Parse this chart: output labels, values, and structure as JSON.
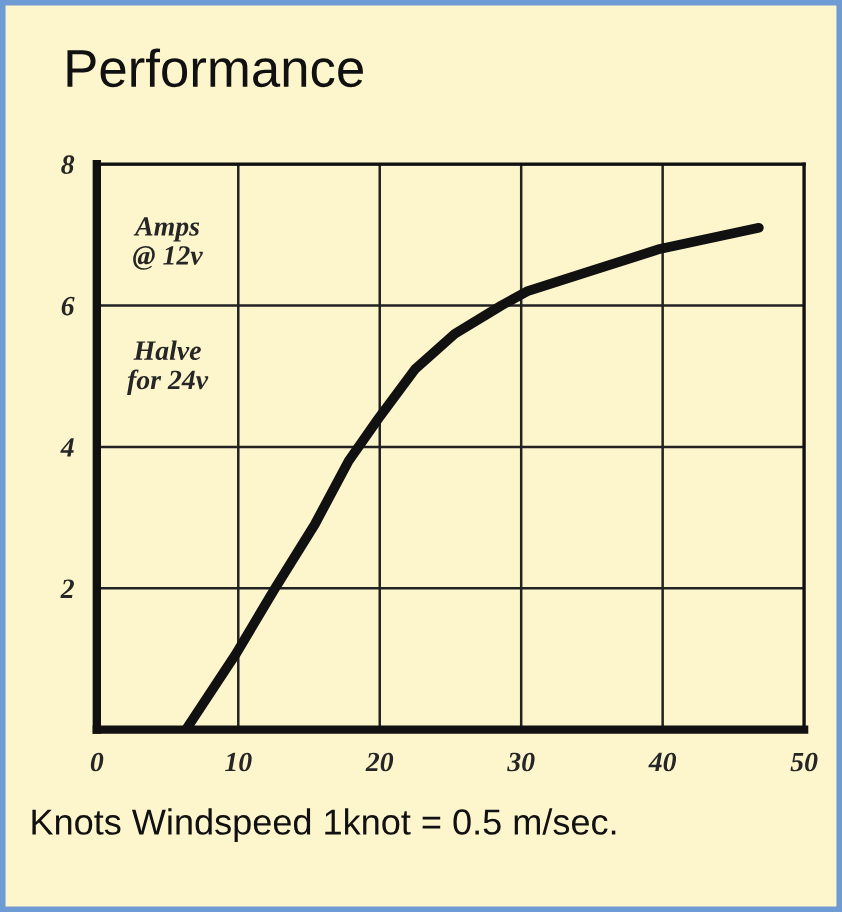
{
  "chart_data": {
    "type": "line",
    "title": "Performance",
    "xlabel": "Knots Windspeed 1knot = 0.5 m/sec.",
    "annotations": [
      "Amps\n@ 12v",
      "Halve\nfor 24v"
    ],
    "x": [
      6.3,
      9.8,
      12.6,
      15.4,
      17.8,
      19.9,
      22.5,
      25.3,
      28.6,
      30.4,
      35.1,
      39.8,
      46.8
    ],
    "series": [
      {
        "color": "#111111",
        "values": [
          0,
          1.06,
          2.0,
          2.9,
          3.8,
          4.4,
          5.1,
          5.6,
          6.0,
          6.2,
          6.5,
          6.8,
          7.1
        ]
      }
    ],
    "xlim": [
      0,
      50
    ],
    "xticks": [
      0,
      10,
      20,
      30,
      40,
      50
    ],
    "ylim": [
      0,
      8
    ],
    "yticks": [
      {
        "value": 0,
        "label": null
      },
      2,
      4,
      6,
      8
    ],
    "grid": true,
    "legend": false
  }
}
